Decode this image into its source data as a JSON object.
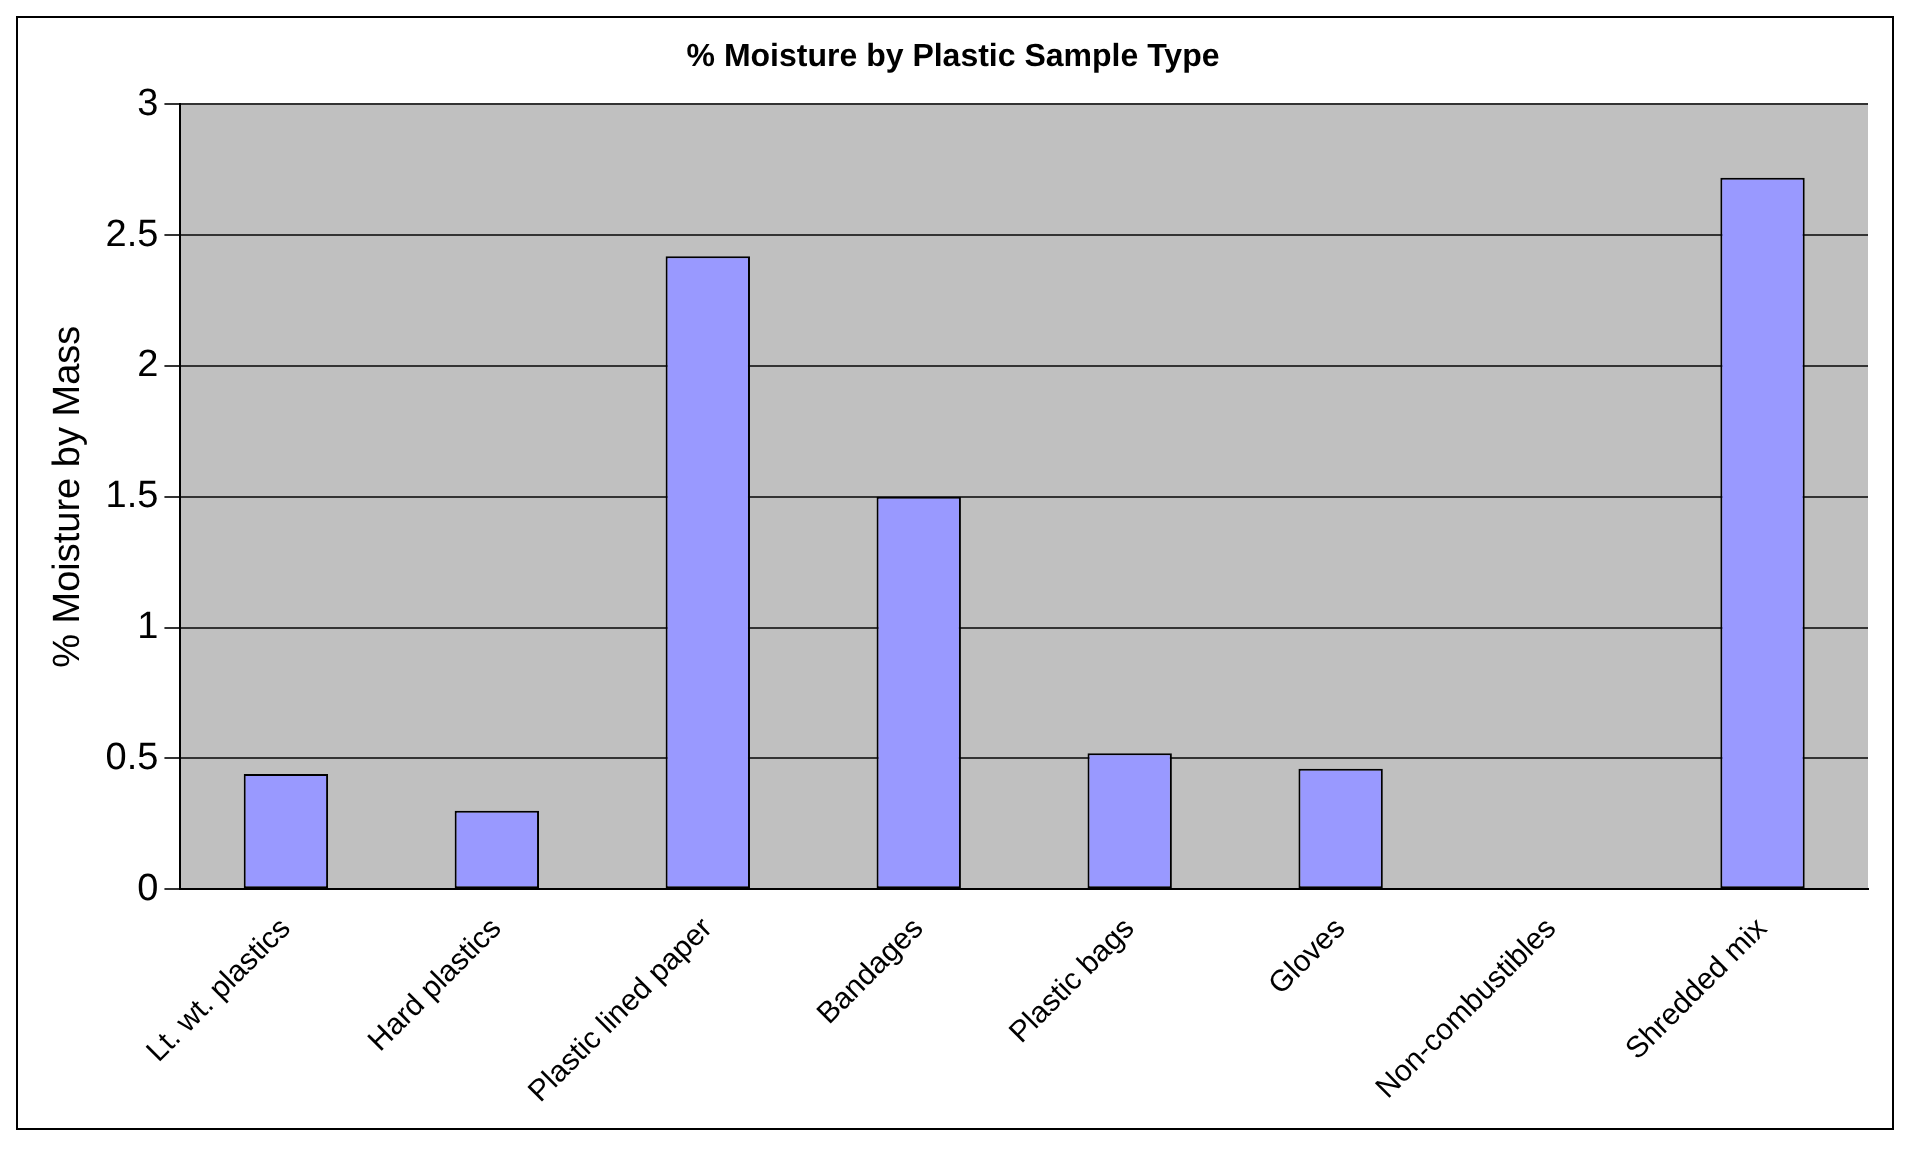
{
  "chart_data": {
    "type": "bar",
    "title": "% Moisture by Plastic Sample Type",
    "ylabel": "% Moisture by Mass",
    "categories": [
      "Lt. wt. plastics",
      "Hard plastics",
      "Plastic lined paper",
      "Bandages",
      "Plastic bags",
      "Gloves",
      "Non-combustibles",
      "Shredded mix"
    ],
    "values": [
      0.44,
      0.3,
      2.42,
      1.5,
      0.52,
      0.46,
      0,
      2.72
    ],
    "color": "#9999ff",
    "ylim": [
      0,
      3
    ],
    "yticks": [
      0,
      0.5,
      1,
      1.5,
      2,
      2.5,
      3
    ],
    "grid": "y",
    "legend": false
  }
}
